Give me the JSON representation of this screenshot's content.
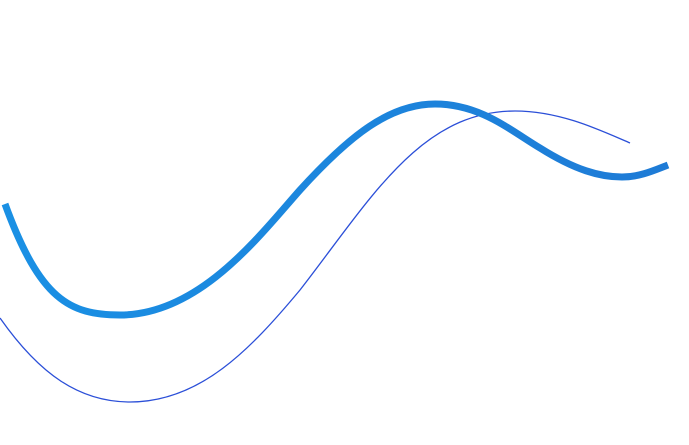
{
  "colors": {
    "thick_curve_start": "#1a90e4",
    "thick_curve_end": "#1e7bd6",
    "thin_curve": "#2b4fd8"
  }
}
